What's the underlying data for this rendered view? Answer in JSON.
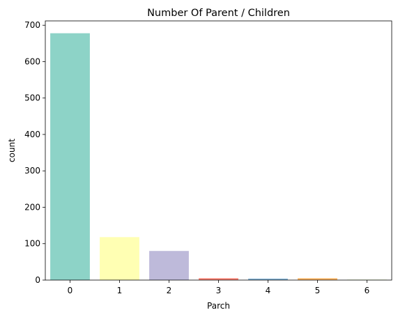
{
  "chart_data": {
    "type": "bar",
    "title": "Number Of Parent / Children",
    "xlabel": "Parch",
    "ylabel": "count",
    "categories": [
      "0",
      "1",
      "2",
      "3",
      "4",
      "5",
      "6"
    ],
    "values": [
      678,
      118,
      80,
      5,
      4,
      5,
      1
    ],
    "colors": [
      "#8dd3c7",
      "#ffffb3",
      "#bebada",
      "#fb8072",
      "#80b1d3",
      "#fdb462",
      "#b3de69"
    ],
    "ylim": [
      0,
      711.9
    ],
    "yticks": [
      0,
      100,
      200,
      300,
      400,
      500,
      600,
      700
    ],
    "grid": false,
    "legend": "none"
  }
}
